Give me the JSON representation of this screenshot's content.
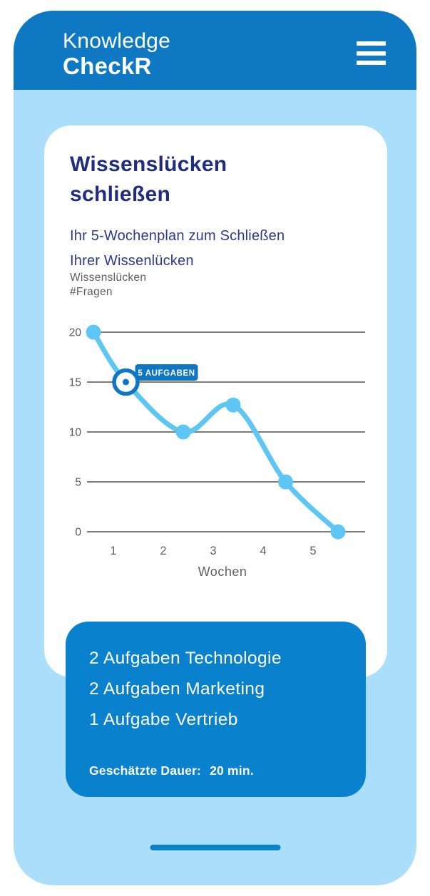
{
  "colors": {
    "header": "#0e78c2",
    "accent": "#0981cd",
    "badge": "#0f76c4",
    "screen_bg": "#aadefb",
    "line": "#5ec6f3",
    "navy": "#202d7d",
    "subtitle_navy": "#2b3a8c",
    "text_gray": "#5f5f5f",
    "grid_gray": "#7c7c7c",
    "tick_gray": "#58595b",
    "white": "#ffffff"
  },
  "header": {
    "brand_line1": "Knowledge",
    "brand_line2": "CheckR"
  },
  "plan_card": {
    "title": "Wissenslücken schließen",
    "subtitle": "Ihr 5-Wochenplan zum Schließen Ihrer Wissenlücken",
    "chart_label": [
      "Wissenslücken",
      "#Fragen"
    ]
  },
  "chart_data": {
    "type": "line",
    "title": "",
    "xlabel": "Wochen",
    "ylabel": "Wissenslücken #Fragen",
    "x": [
      0.6,
      1.25,
      2.4,
      3.4,
      4.45,
      5.5
    ],
    "values": [
      20,
      15,
      10,
      12.7,
      5,
      0
    ],
    "x_ticks": [
      1,
      2,
      3,
      4,
      5
    ],
    "y_ticks": [
      0,
      5,
      10,
      15,
      20
    ],
    "ylim": [
      0,
      20
    ],
    "grid": true,
    "legend": "none",
    "highlight": {
      "index": 1,
      "label": "5 AUFGABEN"
    }
  },
  "summary_card": {
    "items": [
      "2 Aufgaben Technologie",
      "2 Aufgaben Marketing",
      "1 Aufgabe Vertrieb"
    ],
    "duration_label": "Geschätzte Dauer:",
    "duration_value": "20 min."
  }
}
